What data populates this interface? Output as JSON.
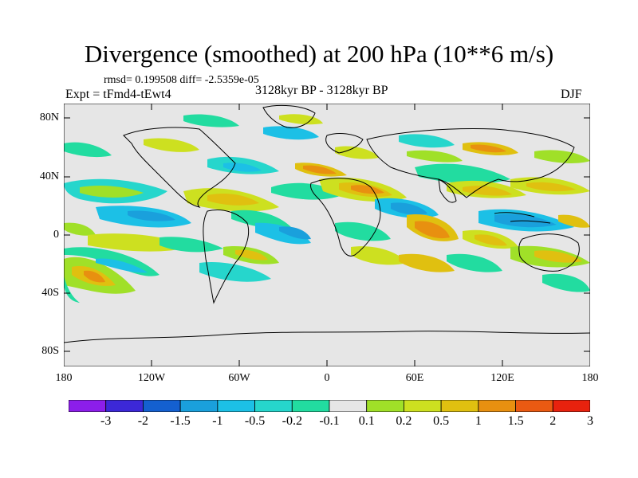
{
  "title": "Divergence (smoothed) at 200 hPa (10**6 m/s)",
  "stats": "rmsd= 0.199508 diff= -2.5359e-05",
  "experiment": "Expt = tFmd4-tEwt4",
  "period": "3128kyr BP - 3128kyr BP",
  "season": "DJF",
  "axes": {
    "y_labels": [
      "80N",
      "40N",
      "0",
      "40S",
      "80S"
    ],
    "x_labels": [
      "180",
      "120W",
      "60W",
      "0",
      "60E",
      "120E",
      "180"
    ]
  },
  "colorbar": {
    "labels": [
      "-3",
      "-2",
      "-1.5",
      "-1",
      "-0.5",
      "-0.2",
      "-0.1",
      "0.1",
      "0.2",
      "0.5",
      "1",
      "1.5",
      "2",
      "3"
    ],
    "colors": [
      "#8c1eea",
      "#3c28d8",
      "#1460d0",
      "#1aa0dc",
      "#1cc0e6",
      "#26d6cc",
      "#22dca0",
      "#e6e6e6",
      "#a0e028",
      "#cde020",
      "#e0c010",
      "#e89010",
      "#ea5a12",
      "#e8220e"
    ]
  },
  "colors": {
    "ocean_land_bg": "#e6e6e6",
    "coastline": "#000000"
  }
}
